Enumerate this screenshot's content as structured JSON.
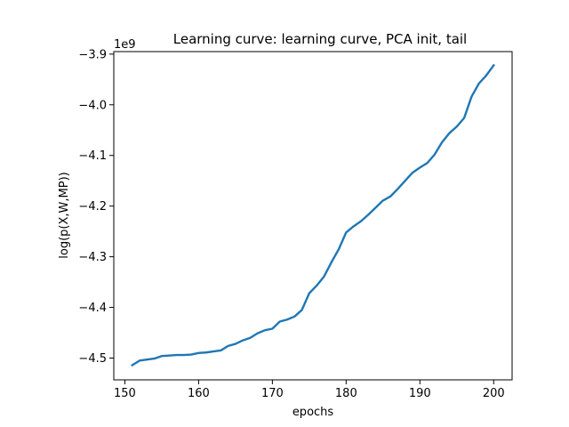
{
  "chart_data": {
    "type": "line",
    "title": "Learning curve: learning curve, PCA init, tail",
    "xlabel": "epochs",
    "ylabel": "log(p(X,W,MP))",
    "y_offset_label": "1e9",
    "xlim": [
      148.5,
      202.5
    ],
    "ylim": [
      -4.543,
      -3.895
    ],
    "x_ticks": [
      150,
      160,
      170,
      180,
      190,
      200
    ],
    "x_tick_labels": [
      "150",
      "160",
      "170",
      "180",
      "190",
      "200"
    ],
    "y_ticks": [
      -4.5,
      -4.4,
      -4.3,
      -4.2,
      -4.1,
      -4.0,
      -3.9
    ],
    "y_tick_labels": [
      "−4.5",
      "−4.4",
      "−4.3",
      "−4.2",
      "−4.1",
      "−4.0",
      "−3.9"
    ],
    "grid": false,
    "series": [
      {
        "color": "#1f77b4",
        "x": [
          151,
          152,
          153,
          154,
          155,
          156,
          157,
          158,
          159,
          160,
          161,
          162,
          163,
          164,
          165,
          166,
          167,
          168,
          169,
          170,
          171,
          172,
          173,
          174,
          175,
          176,
          177,
          178,
          179,
          180,
          181,
          182,
          183,
          184,
          185,
          186,
          187,
          188,
          189,
          190,
          191,
          192,
          193,
          194,
          195,
          196,
          197,
          198,
          199,
          200
        ],
        "y": [
          -4.514,
          -4.505,
          -4.503,
          -4.501,
          -4.496,
          -4.495,
          -4.494,
          -4.494,
          -4.493,
          -4.49,
          -4.489,
          -4.487,
          -4.485,
          -4.476,
          -4.472,
          -4.465,
          -4.46,
          -4.451,
          -4.445,
          -4.442,
          -4.428,
          -4.424,
          -4.418,
          -4.405,
          -4.372,
          -4.357,
          -4.339,
          -4.311,
          -4.285,
          -4.252,
          -4.24,
          -4.23,
          -4.217,
          -4.203,
          -4.189,
          -4.181,
          -4.166,
          -4.15,
          -4.134,
          -4.124,
          -4.115,
          -4.098,
          -4.074,
          -4.056,
          -4.043,
          -4.026,
          -3.984,
          -3.958,
          -3.942,
          -3.922
        ]
      }
    ]
  }
}
